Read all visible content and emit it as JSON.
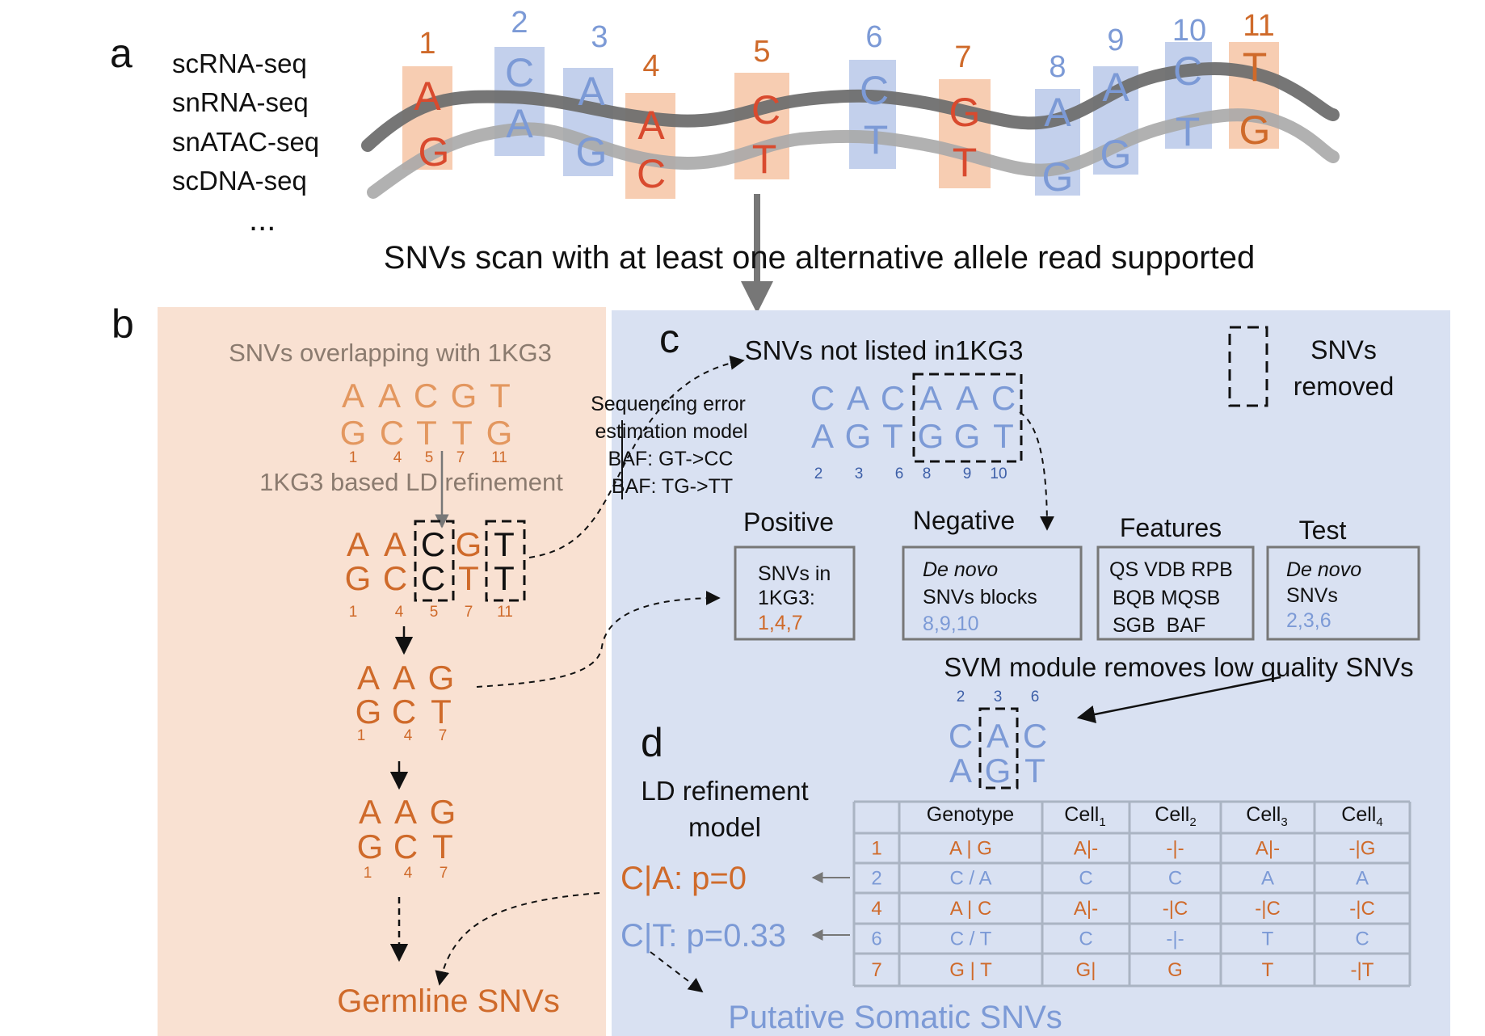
{
  "colors": {
    "orange": "#cf6a2a",
    "orange_light": "#e3975f",
    "red": "#d94a2e",
    "blue": "#7c9ad6",
    "blue_dark": "#3d5fa8",
    "panel_orange": "#f9e1d2",
    "panel_blue": "#d9e1f2",
    "box_orange": "#f7cdb2",
    "box_blue": "#c3d0ec",
    "strand_dark": "#6f6f6f",
    "strand_light": "#a9a9a9",
    "text": "#1a1a1a",
    "grey_text": "#8b7b6f"
  },
  "panel_a": {
    "letter": "a",
    "assays": [
      "scRNA-seq",
      "snRNA-seq",
      "snATAC-seq",
      "scDNA-seq"
    ],
    "ellipsis": "...",
    "sites": [
      {
        "num": "1",
        "top": "A",
        "bottom": "G",
        "group": "orange"
      },
      {
        "num": "2",
        "top": "C",
        "bottom": "A",
        "group": "blue"
      },
      {
        "num": "3",
        "top": "A",
        "bottom": "G",
        "group": "blue"
      },
      {
        "num": "4",
        "top": "A",
        "bottom": "C",
        "group": "orange"
      },
      {
        "num": "5",
        "top": "C",
        "bottom": "T",
        "group": "orange"
      },
      {
        "num": "6",
        "top": "C",
        "bottom": "T",
        "group": "blue"
      },
      {
        "num": "7",
        "top": "G",
        "bottom": "T",
        "group": "orange"
      },
      {
        "num": "8",
        "top": "A",
        "bottom": "G",
        "group": "blue"
      },
      {
        "num": "9",
        "top": "A",
        "bottom": "G",
        "group": "blue"
      },
      {
        "num": "10",
        "top": "C",
        "bottom": "T",
        "group": "blue"
      },
      {
        "num": "11",
        "top": "T",
        "bottom": "G",
        "group": "orange"
      }
    ],
    "scan_label": "SNVs scan with at least one alternative allele read supported"
  },
  "panel_b": {
    "letter": "b",
    "overlap_title": "SNVs overlapping with 1KG3",
    "row1": [
      "A",
      "A",
      "C",
      "G",
      "T"
    ],
    "row2": [
      "G",
      "C",
      "T",
      "T",
      "G"
    ],
    "positions": [
      "1",
      "4",
      "5",
      "7",
      "11"
    ],
    "ld_title": "1KG3 based LD refinement",
    "step2_row1": [
      "A",
      "A",
      "C",
      "G",
      "T"
    ],
    "step2_row2": [
      "G",
      "C",
      "C",
      "T",
      "T"
    ],
    "step2_positions": [
      "1",
      "4",
      "5",
      "7",
      "11"
    ],
    "step3_row1": [
      "A",
      "A",
      "G"
    ],
    "step3_row2": [
      "G",
      "C",
      "T"
    ],
    "step3_positions": [
      "1",
      "4",
      "7"
    ],
    "germline_label": "Germline SNVs"
  },
  "seq_error": {
    "lines": [
      "Sequencing error",
      "estimation model",
      "BAF: GT->CC",
      "BAF: TG->TT"
    ]
  },
  "panel_c": {
    "letter": "c",
    "title": "SNVs not listed in1KG3",
    "row1": [
      "C",
      "A",
      "C",
      "A",
      "A",
      "C"
    ],
    "row2": [
      "A",
      "G",
      "T",
      "G",
      "G",
      "T"
    ],
    "positions": [
      "2",
      "3",
      "6",
      "8",
      "9",
      "10"
    ],
    "legend_label_1": "SNVs",
    "legend_label_2": "removed",
    "positive_title": "Positive",
    "positive_lines": [
      "SNVs in",
      "1KG3:"
    ],
    "positive_value": "1,4,7",
    "negative_title": "Negative",
    "negative_line1": "De novo",
    "negative_line2": "SNVs blocks",
    "negative_value": "8,9,10",
    "features_title": "Features",
    "features_lines": [
      "QS VDB RPB",
      "BQB MQSB",
      "SGB  BAF"
    ],
    "test_title": "Test",
    "test_line1": "De novo",
    "test_line2": "SNVs",
    "test_value": "2,3,6",
    "svm_label": "SVM module removes low quality SNVs",
    "svm_positions": [
      "2",
      "3",
      "6"
    ],
    "svm_row1": [
      "C",
      "A",
      "C"
    ],
    "svm_row2": [
      "A",
      "G",
      "T"
    ]
  },
  "panel_d": {
    "letter": "d",
    "model_line1": "LD refinement",
    "model_line2": "model",
    "prob1": "C|A: p=0",
    "prob2": "C|T: p=0.33",
    "somatic_label": "Putative Somatic SNVs",
    "table": {
      "headers": [
        "",
        "Genotype",
        "Cell",
        "Cell",
        "Cell",
        "Cell"
      ],
      "header_subs": [
        "",
        "",
        "1",
        "2",
        "3",
        "4"
      ],
      "rows": [
        {
          "cells": [
            "1",
            "A | G",
            "A|-",
            "-|-",
            "A|-",
            "-|G"
          ],
          "group": "orange"
        },
        {
          "cells": [
            "2",
            "C / A",
            "C",
            "C",
            "A",
            "A"
          ],
          "group": "blue"
        },
        {
          "cells": [
            "4",
            "A | C",
            "A|-",
            "-|C",
            "-|C",
            "-|C"
          ],
          "group": "orange"
        },
        {
          "cells": [
            "6",
            "C / T",
            "C",
            "-|-",
            "T",
            "C"
          ],
          "group": "blue"
        },
        {
          "cells": [
            "7",
            "G | T",
            "G|",
            "G",
            "T",
            "-|T"
          ],
          "group": "orange"
        }
      ]
    }
  }
}
